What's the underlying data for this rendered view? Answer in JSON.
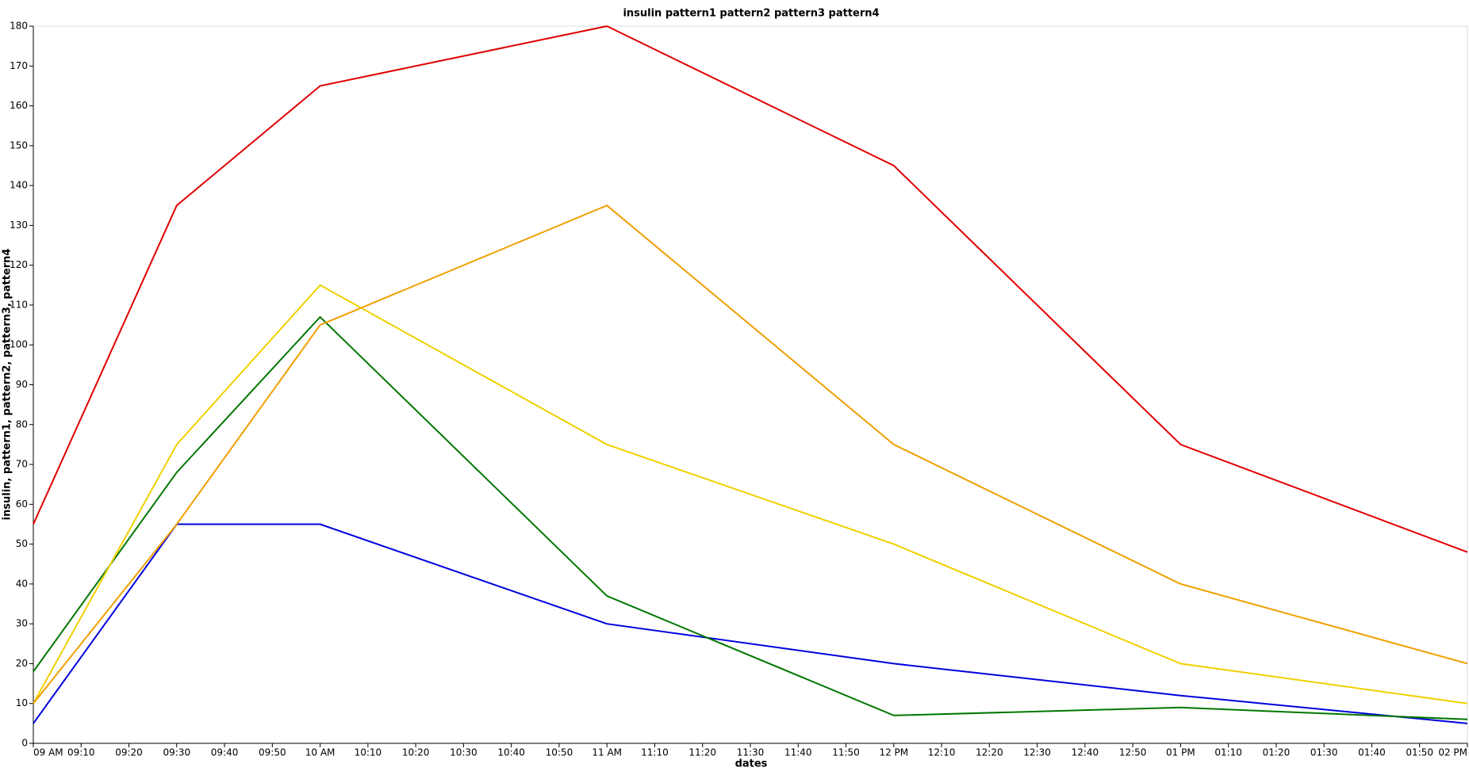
{
  "chart_data": {
    "type": "line",
    "title": "insulin pattern1 pattern2 pattern3 pattern4",
    "x_label": "dates",
    "y_label": "insulin, pattern1, pattern2, pattern3, pattern4",
    "x": [
      "09:00",
      "09:30",
      "10:00",
      "11:00",
      "12:00",
      "13:00",
      "14:00"
    ],
    "series": [
      {
        "color": "#e00000",
        "values": [
          55,
          135,
          165,
          180,
          145,
          75,
          48
        ]
      },
      {
        "color": "#0000dd",
        "values": [
          5,
          55,
          55,
          30,
          20,
          12,
          5
        ]
      },
      {
        "color": "#007700",
        "values": [
          18,
          68,
          107,
          37,
          7,
          9,
          6
        ]
      },
      {
        "color": "#f0d000",
        "values": [
          10,
          75,
          115,
          75,
          50,
          20,
          10
        ]
      },
      {
        "color": "#f0a000",
        "values": [
          10,
          55,
          105,
          135,
          75,
          40,
          20
        ]
      }
    ],
    "xlim": [
      "09:00",
      "14:00"
    ],
    "xticks": [
      {
        "value": "09:00",
        "label": "09 AM"
      },
      {
        "value": "09:10",
        "label": "09:10"
      },
      {
        "value": "09:20",
        "label": "09:20"
      },
      {
        "value": "09:30",
        "label": "09:30"
      },
      {
        "value": "09:40",
        "label": "09:40"
      },
      {
        "value": "09:50",
        "label": "09:50"
      },
      {
        "value": "10:00",
        "label": "10 AM"
      },
      {
        "value": "10:10",
        "label": "10:10"
      },
      {
        "value": "10:20",
        "label": "10:20"
      },
      {
        "value": "10:30",
        "label": "10:30"
      },
      {
        "value": "10:40",
        "label": "10:40"
      },
      {
        "value": "10:50",
        "label": "10:50"
      },
      {
        "value": "11:00",
        "label": "11 AM"
      },
      {
        "value": "11:10",
        "label": "11:10"
      },
      {
        "value": "11:20",
        "label": "11:20"
      },
      {
        "value": "11:30",
        "label": "11:30"
      },
      {
        "value": "11:40",
        "label": "11:40"
      },
      {
        "value": "11:50",
        "label": "11:50"
      },
      {
        "value": "12:00",
        "label": "12 PM"
      },
      {
        "value": "12:10",
        "label": "12:10"
      },
      {
        "value": "12:20",
        "label": "12:20"
      },
      {
        "value": "12:30",
        "label": "12:30"
      },
      {
        "value": "12:40",
        "label": "12:40"
      },
      {
        "value": "12:50",
        "label": "12:50"
      },
      {
        "value": "13:00",
        "label": "01 PM"
      },
      {
        "value": "13:10",
        "label": "01:10"
      },
      {
        "value": "13:20",
        "label": "01:20"
      },
      {
        "value": "13:30",
        "label": "01:30"
      },
      {
        "value": "13:40",
        "label": "01:40"
      },
      {
        "value": "13:50",
        "label": "01:50"
      },
      {
        "value": "14:00",
        "label": "02 PM"
      }
    ],
    "ylim": [
      0,
      180
    ],
    "yticks": [
      0,
      10,
      20,
      30,
      40,
      50,
      60,
      70,
      80,
      90,
      100,
      110,
      120,
      130,
      140,
      150,
      160,
      170,
      180
    ]
  }
}
